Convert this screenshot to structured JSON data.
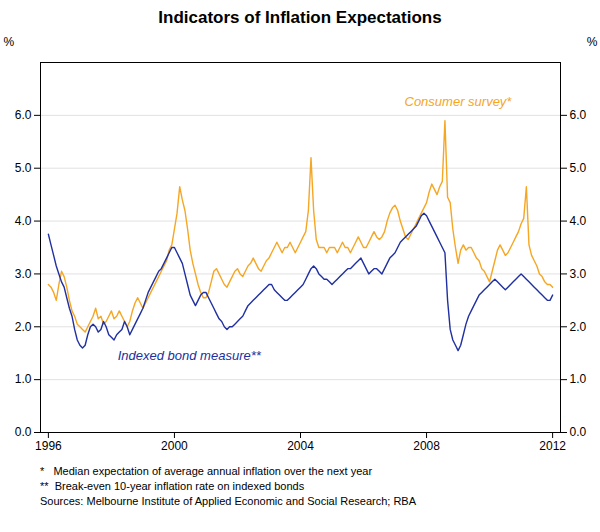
{
  "chart_data": {
    "type": "line",
    "title": "Indicators of Inflation Expectations",
    "ylabel": "%",
    "y2label": "%",
    "xlim": [
      1995.75,
      2012.25
    ],
    "xticks": [
      1996,
      2000,
      2004,
      2008,
      2012
    ],
    "ylim": [
      0,
      7
    ],
    "yticks": [
      0,
      1,
      2,
      3,
      4,
      5,
      6
    ],
    "y2lim": [
      0,
      7
    ],
    "y2ticks": [
      0,
      1,
      2,
      3,
      4,
      5,
      6
    ],
    "grid": true,
    "x": [
      1996.0,
      1996.083,
      1996.167,
      1996.25,
      1996.333,
      1996.417,
      1996.5,
      1996.583,
      1996.667,
      1996.75,
      1996.833,
      1996.917,
      1997.0,
      1997.083,
      1997.167,
      1997.25,
      1997.333,
      1997.417,
      1997.5,
      1997.583,
      1997.667,
      1997.75,
      1997.833,
      1997.917,
      1998.0,
      1998.083,
      1998.167,
      1998.25,
      1998.333,
      1998.417,
      1998.5,
      1998.583,
      1998.667,
      1998.75,
      1998.833,
      1998.917,
      1999.0,
      1999.083,
      1999.167,
      1999.25,
      1999.333,
      1999.417,
      1999.5,
      1999.583,
      1999.667,
      1999.75,
      1999.833,
      1999.917,
      2000.0,
      2000.083,
      2000.167,
      2000.25,
      2000.333,
      2000.417,
      2000.5,
      2000.583,
      2000.667,
      2000.75,
      2000.833,
      2000.917,
      2001.0,
      2001.083,
      2001.167,
      2001.25,
      2001.333,
      2001.417,
      2001.5,
      2001.583,
      2001.667,
      2001.75,
      2001.833,
      2001.917,
      2002.0,
      2002.083,
      2002.167,
      2002.25,
      2002.333,
      2002.417,
      2002.5,
      2002.583,
      2002.667,
      2002.75,
      2002.833,
      2002.917,
      2003.0,
      2003.083,
      2003.167,
      2003.25,
      2003.333,
      2003.417,
      2003.5,
      2003.583,
      2003.667,
      2003.75,
      2003.833,
      2003.917,
      2004.0,
      2004.083,
      2004.167,
      2004.25,
      2004.333,
      2004.417,
      2004.5,
      2004.583,
      2004.667,
      2004.75,
      2004.833,
      2004.917,
      2005.0,
      2005.083,
      2005.167,
      2005.25,
      2005.333,
      2005.417,
      2005.5,
      2005.583,
      2005.667,
      2005.75,
      2005.833,
      2005.917,
      2006.0,
      2006.083,
      2006.167,
      2006.25,
      2006.333,
      2006.417,
      2006.5,
      2006.583,
      2006.667,
      2006.75,
      2006.833,
      2006.917,
      2007.0,
      2007.083,
      2007.167,
      2007.25,
      2007.333,
      2007.417,
      2007.5,
      2007.583,
      2007.667,
      2007.75,
      2007.833,
      2007.917,
      2008.0,
      2008.083,
      2008.167,
      2008.25,
      2008.333,
      2008.417,
      2008.5,
      2008.583,
      2008.667,
      2008.75,
      2008.833,
      2008.917,
      2009.0,
      2009.083,
      2009.167,
      2009.25,
      2009.333,
      2009.417,
      2009.5,
      2009.583,
      2009.667,
      2009.75,
      2009.833,
      2009.917,
      2010.0,
      2010.083,
      2010.167,
      2010.25,
      2010.333,
      2010.417,
      2010.5,
      2010.583,
      2010.667,
      2010.75,
      2010.833,
      2010.917,
      2011.0,
      2011.083,
      2011.167,
      2011.25,
      2011.333,
      2011.417,
      2011.5,
      2011.583,
      2011.667,
      2011.75,
      2011.833,
      2011.917,
      2012.0
    ],
    "series": [
      {
        "name": "Consumer survey*",
        "color": "#f5a623",
        "values": [
          2.8,
          2.75,
          2.65,
          2.5,
          2.8,
          3.05,
          2.95,
          2.75,
          2.5,
          2.3,
          2.2,
          2.05,
          2.0,
          1.95,
          1.9,
          2.0,
          2.1,
          2.2,
          2.35,
          2.15,
          2.2,
          2.05,
          2.1,
          2.2,
          2.3,
          2.15,
          2.2,
          2.3,
          2.2,
          2.1,
          2.0,
          2.1,
          2.3,
          2.45,
          2.55,
          2.45,
          2.35,
          2.45,
          2.55,
          2.65,
          2.75,
          2.85,
          2.95,
          3.05,
          3.15,
          3.25,
          3.45,
          3.55,
          3.85,
          4.15,
          4.65,
          4.4,
          4.2,
          3.85,
          3.45,
          3.2,
          3.0,
          2.8,
          2.65,
          2.55,
          2.55,
          2.65,
          2.85,
          3.05,
          3.1,
          3.0,
          2.9,
          2.8,
          2.75,
          2.85,
          2.95,
          3.05,
          3.1,
          3.0,
          2.95,
          3.05,
          3.15,
          3.2,
          3.3,
          3.2,
          3.1,
          3.05,
          3.15,
          3.25,
          3.3,
          3.4,
          3.5,
          3.6,
          3.5,
          3.4,
          3.5,
          3.5,
          3.6,
          3.5,
          3.4,
          3.5,
          3.6,
          3.7,
          3.8,
          4.2,
          5.2,
          4.2,
          3.65,
          3.5,
          3.5,
          3.5,
          3.4,
          3.5,
          3.5,
          3.5,
          3.4,
          3.5,
          3.6,
          3.5,
          3.5,
          3.4,
          3.5,
          3.6,
          3.7,
          3.6,
          3.5,
          3.5,
          3.6,
          3.7,
          3.8,
          3.7,
          3.65,
          3.7,
          3.8,
          4.0,
          4.15,
          4.25,
          4.3,
          4.2,
          4.0,
          3.85,
          3.7,
          3.65,
          3.75,
          3.85,
          3.95,
          4.05,
          4.15,
          4.25,
          4.35,
          4.55,
          4.7,
          4.6,
          4.5,
          4.65,
          4.75,
          5.9,
          4.45,
          4.35,
          3.85,
          3.5,
          3.2,
          3.45,
          3.55,
          3.45,
          3.5,
          3.5,
          3.4,
          3.3,
          3.25,
          3.1,
          3.05,
          2.95,
          2.85,
          3.05,
          3.25,
          3.45,
          3.55,
          3.45,
          3.35,
          3.4,
          3.5,
          3.6,
          3.7,
          3.8,
          3.95,
          4.05,
          4.65,
          3.55,
          3.35,
          3.25,
          3.15,
          3.0,
          2.95,
          2.85,
          2.8,
          2.8,
          2.75
        ]
      },
      {
        "name": "Indexed bond measure**",
        "color": "#2030a0",
        "values": [
          3.75,
          3.55,
          3.35,
          3.15,
          3.0,
          2.85,
          2.75,
          2.55,
          2.35,
          2.2,
          1.95,
          1.75,
          1.65,
          1.6,
          1.65,
          1.85,
          2.0,
          2.05,
          2.0,
          1.9,
          1.95,
          2.1,
          2.0,
          1.85,
          1.8,
          1.75,
          1.85,
          1.9,
          1.95,
          2.1,
          2.0,
          1.85,
          1.95,
          2.05,
          2.15,
          2.25,
          2.35,
          2.5,
          2.65,
          2.75,
          2.85,
          2.95,
          3.05,
          3.1,
          3.2,
          3.3,
          3.4,
          3.5,
          3.5,
          3.4,
          3.3,
          3.2,
          3.0,
          2.8,
          2.6,
          2.5,
          2.4,
          2.5,
          2.6,
          2.65,
          2.65,
          2.55,
          2.45,
          2.35,
          2.25,
          2.15,
          2.1,
          2.0,
          1.95,
          2.0,
          2.0,
          2.05,
          2.1,
          2.15,
          2.2,
          2.3,
          2.4,
          2.45,
          2.5,
          2.55,
          2.6,
          2.65,
          2.7,
          2.75,
          2.8,
          2.8,
          2.7,
          2.65,
          2.6,
          2.55,
          2.5,
          2.5,
          2.55,
          2.6,
          2.65,
          2.7,
          2.75,
          2.8,
          2.9,
          3.0,
          3.1,
          3.15,
          3.1,
          3.0,
          2.95,
          2.9,
          2.9,
          2.85,
          2.8,
          2.85,
          2.9,
          2.95,
          3.0,
          3.05,
          3.1,
          3.1,
          3.15,
          3.2,
          3.25,
          3.3,
          3.2,
          3.1,
          3.0,
          3.05,
          3.1,
          3.1,
          3.05,
          3.0,
          3.1,
          3.2,
          3.3,
          3.35,
          3.4,
          3.5,
          3.6,
          3.65,
          3.7,
          3.75,
          3.8,
          3.85,
          3.9,
          4.0,
          4.1,
          4.15,
          4.1,
          4.0,
          3.9,
          3.8,
          3.7,
          3.6,
          3.5,
          3.4,
          2.5,
          1.95,
          1.75,
          1.65,
          1.55,
          1.65,
          1.85,
          2.05,
          2.2,
          2.3,
          2.4,
          2.5,
          2.6,
          2.65,
          2.7,
          2.75,
          2.8,
          2.85,
          2.9,
          2.85,
          2.8,
          2.75,
          2.7,
          2.75,
          2.8,
          2.85,
          2.9,
          2.95,
          3.0,
          2.95,
          2.9,
          2.85,
          2.8,
          2.75,
          2.7,
          2.65,
          2.6,
          2.55,
          2.5,
          2.5,
          2.6
        ]
      }
    ],
    "annotations": [
      {
        "text": "Consumer survey*",
        "x": 2007.3,
        "y": 6.25
      },
      {
        "text": "Indexed bond measure**",
        "x": 1998.2,
        "y": 1.45
      }
    ],
    "footnotes": [
      "*   Median expectation of average annual inflation over the next year",
      "**  Break-even 10-year inflation rate on indexed bonds",
      "Sources: Melbourne Institute of Applied Economic and Social Research; RBA"
    ]
  }
}
